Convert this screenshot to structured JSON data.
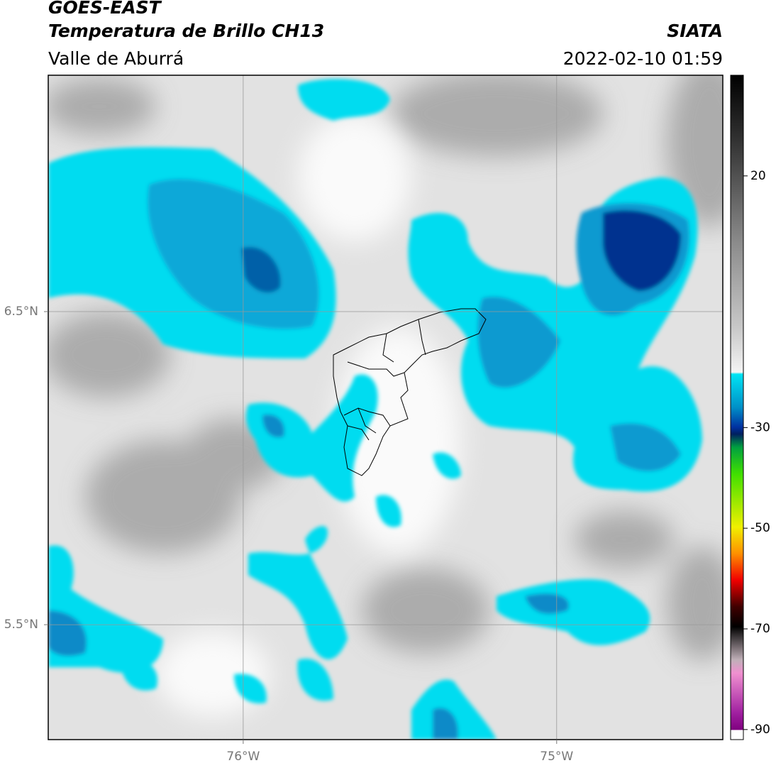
{
  "header": {
    "title": "GOES-EAST",
    "subtitle": "Temperatura de Brillo CH13",
    "region": "Valle de Aburrá",
    "source": "SIATA",
    "datetime": "2022-02-10 01:59"
  },
  "map": {
    "xlim": [
      -76.622,
      -74.47
    ],
    "ylim": [
      5.133,
      7.255
    ],
    "xticks": [
      {
        "value": -76,
        "label": "76°W"
      },
      {
        "value": -75,
        "label": "75°W"
      }
    ],
    "yticks": [
      {
        "value": 6.5,
        "label": "6.5°N"
      },
      {
        "value": 5.5,
        "label": "5.5°N"
      }
    ],
    "grid": true
  },
  "colorbar": {
    "lim": [
      -92,
      40
    ],
    "ticks": [
      20,
      -30,
      -50,
      -70,
      -90
    ]
  }
}
